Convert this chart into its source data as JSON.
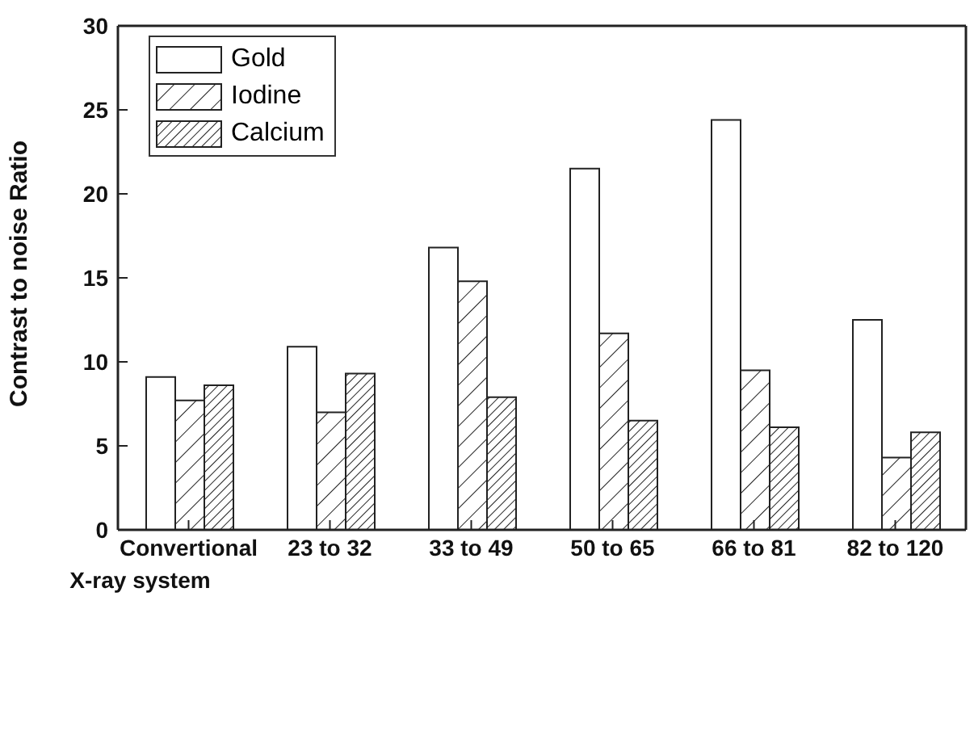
{
  "chart_data": {
    "type": "bar",
    "ylabel": "Contrast to noise Ratio",
    "categories": [
      "Convertional\nX-ray system",
      "23 to 32",
      "33 to 49",
      "50 to 65",
      "66 to 81",
      "82 to 120"
    ],
    "series": [
      {
        "name": "Gold",
        "color": "#ffffff",
        "values": [
          9.1,
          10.9,
          16.8,
          21.5,
          24.4,
          12.5
        ]
      },
      {
        "name": "Iodine",
        "color": "#222222",
        "values": [
          7.7,
          7.0,
          14.8,
          11.7,
          9.5,
          4.3
        ]
      },
      {
        "name": "Calcium",
        "color": "#222222",
        "values": [
          8.6,
          9.3,
          7.9,
          6.5,
          6.1,
          5.8
        ]
      }
    ],
    "ylim": [
      0,
      30
    ],
    "yticks": [
      0,
      5,
      10,
      15,
      20,
      25,
      30
    ],
    "grid": false,
    "legend": "top left"
  }
}
